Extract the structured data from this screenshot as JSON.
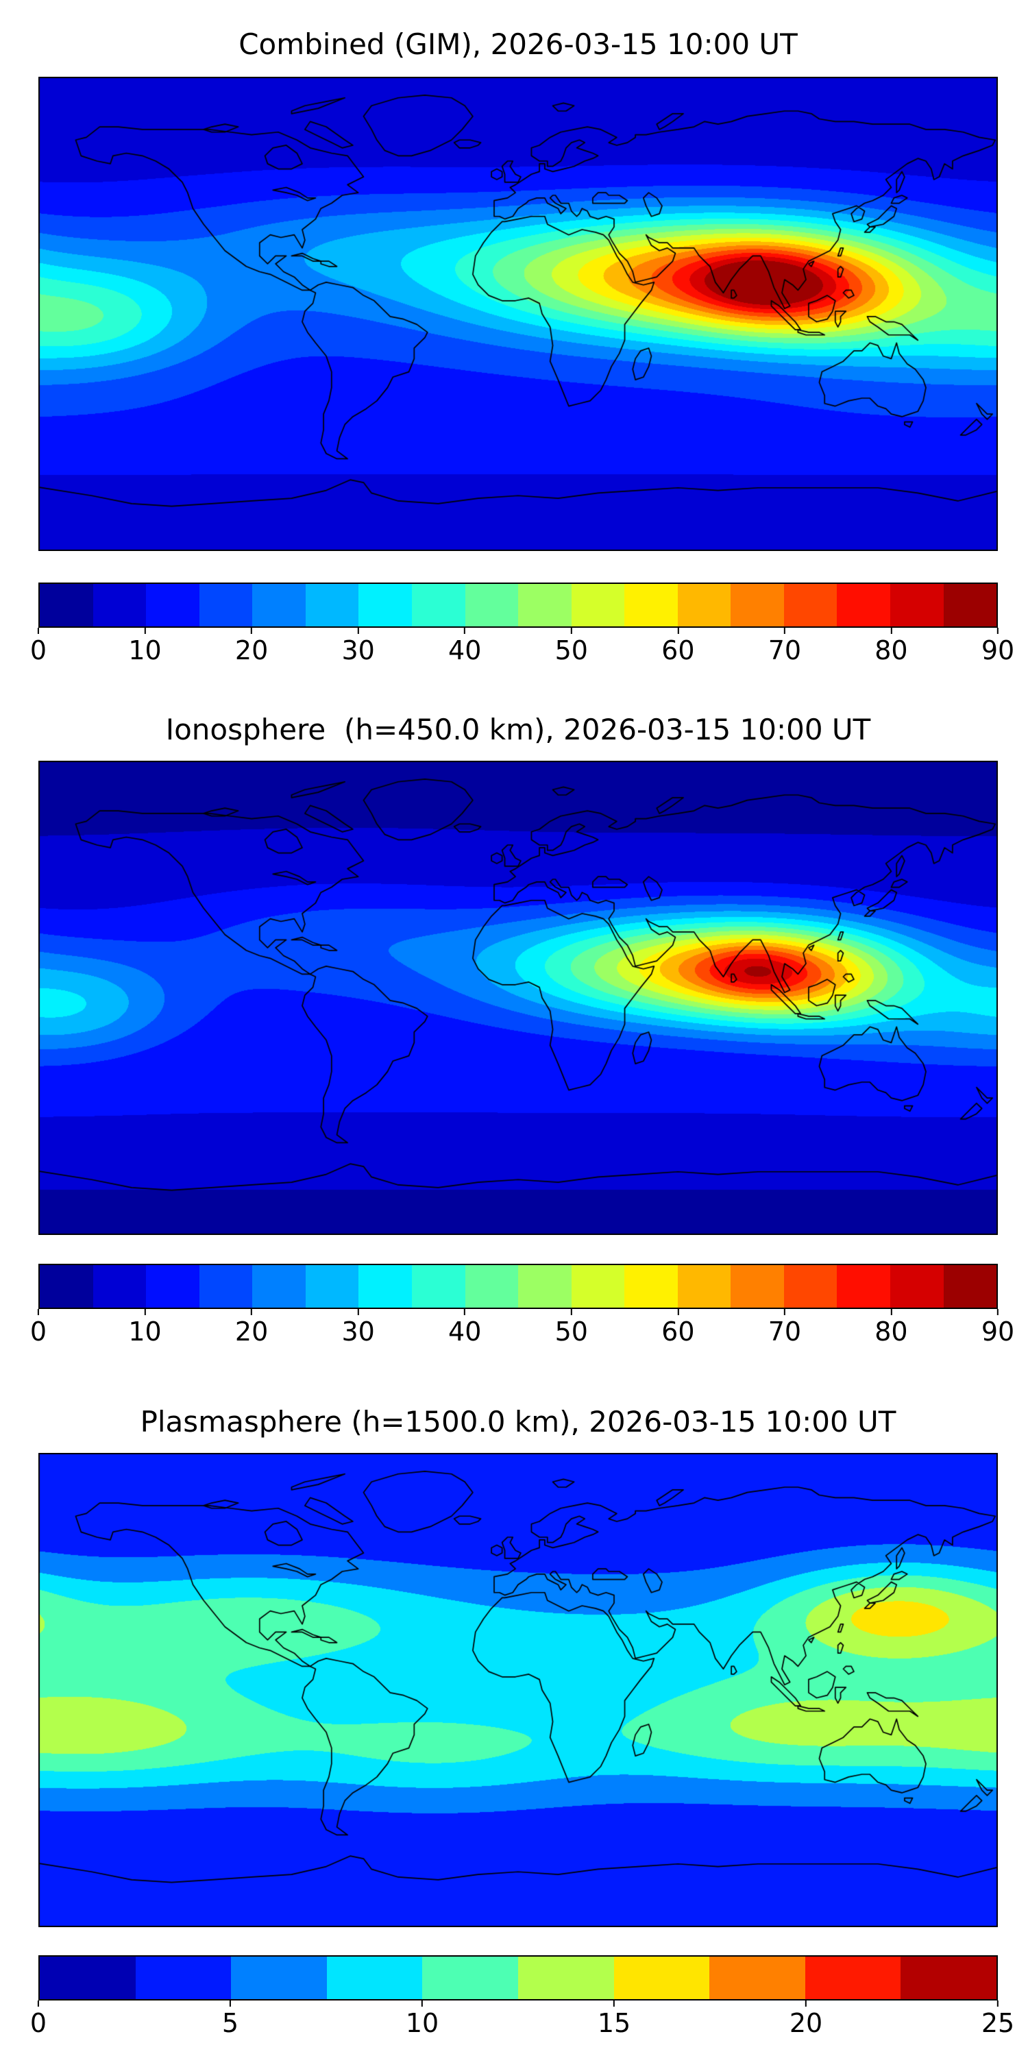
{
  "figure": {
    "background": "#ffffff",
    "panel_count": 3
  },
  "chart_data": [
    {
      "type": "heatmap",
      "title": "Combined (GIM), 2026-03-15 10:00 UT",
      "projection": "equirectangular",
      "lon_range": [
        -180,
        180
      ],
      "lat_range": [
        -90,
        90
      ],
      "colormap": "jet",
      "grid": false,
      "levels": {
        "min": 0,
        "max": 90,
        "step": 5
      },
      "colorbar_ticks": [
        0,
        10,
        20,
        30,
        40,
        50,
        60,
        70,
        80,
        90
      ],
      "field": {
        "base": 7,
        "clamp_max": 89,
        "lat_bands": [
          {
            "amp": 9,
            "lat": 4,
            "sigma": 26
          },
          {
            "amp": 5,
            "lat": -45,
            "sigma": 14
          }
        ],
        "blobs": [
          {
            "amp": 52,
            "lon": 70,
            "lat": 15,
            "sigma_lon": 58,
            "sigma_lat": 16
          },
          {
            "amp": 30,
            "lon": 106,
            "lat": 8,
            "sigma_lon": 30,
            "sigma_lat": 13
          },
          {
            "amp": 11,
            "lon": 90,
            "lat": 13,
            "sigma_lon": 14,
            "sigma_lat": 8
          },
          {
            "amp": 20,
            "lon": -160,
            "lat": -2,
            "sigma_lon": 30,
            "sigma_lat": 14
          },
          {
            "amp": 10,
            "lon": -65,
            "lat": 27,
            "sigma_lon": 55,
            "sigma_lat": 15
          },
          {
            "amp": 8,
            "lon": 150,
            "lat": -12,
            "sigma_lon": 35,
            "sigma_lat": 13
          }
        ]
      }
    },
    {
      "type": "heatmap",
      "title": "Ionosphere  (h=450.0 km), 2026-03-15 10:00 UT",
      "projection": "equirectangular",
      "lon_range": [
        -180,
        180
      ],
      "lat_range": [
        -90,
        90
      ],
      "colormap": "jet",
      "grid": false,
      "levels": {
        "min": 0,
        "max": 90,
        "step": 5
      },
      "colorbar_ticks": [
        0,
        10,
        20,
        30,
        40,
        50,
        60,
        70,
        80,
        90
      ],
      "field": {
        "base": 4.5,
        "clamp_max": 86,
        "lat_bands": [
          {
            "amp": 8,
            "lat": 2,
            "sigma": 25
          },
          {
            "amp": 4,
            "lat": -45,
            "sigma": 13
          }
        ],
        "blobs": [
          {
            "amp": 46,
            "lon": 72,
            "lat": 12,
            "sigma_lon": 50,
            "sigma_lat": 14
          },
          {
            "amp": 26,
            "lon": 104,
            "lat": 7,
            "sigma_lon": 28,
            "sigma_lat": 12
          },
          {
            "amp": 9,
            "lon": 88,
            "lat": 11,
            "sigma_lon": 13,
            "sigma_lat": 7
          },
          {
            "amp": 15,
            "lon": -166,
            "lat": -3,
            "sigma_lon": 26,
            "sigma_lat": 13
          },
          {
            "amp": 8,
            "lon": -65,
            "lat": 25,
            "sigma_lon": 50,
            "sigma_lat": 14
          },
          {
            "amp": 6,
            "lon": 150,
            "lat": -12,
            "sigma_lon": 32,
            "sigma_lat": 12
          }
        ]
      }
    },
    {
      "type": "heatmap",
      "title": "Plasmasphere (h=1500.0 km), 2026-03-15 10:00 UT",
      "projection": "equirectangular",
      "lon_range": [
        -180,
        180
      ],
      "lat_range": [
        -90,
        90
      ],
      "colormap": "jet",
      "grid": false,
      "levels": {
        "min": 0,
        "max": 25,
        "step": 2.5
      },
      "colorbar_ticks": [
        0,
        5,
        10,
        15,
        20,
        25
      ],
      "field": {
        "base": 3.2,
        "clamp_max": 24.5,
        "lat_bands": [
          {
            "amp": 4.5,
            "lat": 22,
            "sigma": 16
          },
          {
            "amp": 4.5,
            "lat": -18,
            "sigma": 16
          }
        ],
        "blobs": [
          {
            "amp": 8.5,
            "lon": 142,
            "lat": 30,
            "sigma_lon": 32,
            "sigma_lat": 13
          },
          {
            "amp": 5,
            "lon": 100,
            "lat": -12,
            "sigma_lon": 40,
            "sigma_lat": 15
          },
          {
            "amp": 6,
            "lon": -160,
            "lat": -14,
            "sigma_lon": 45,
            "sigma_lat": 16
          },
          {
            "amp": 4,
            "lon": -100,
            "lat": 28,
            "sigma_lon": 45,
            "sigma_lat": 14
          },
          {
            "amp": 3,
            "lon": -30,
            "lat": -25,
            "sigma_lon": 40,
            "sigma_lat": 14
          }
        ]
      }
    }
  ]
}
